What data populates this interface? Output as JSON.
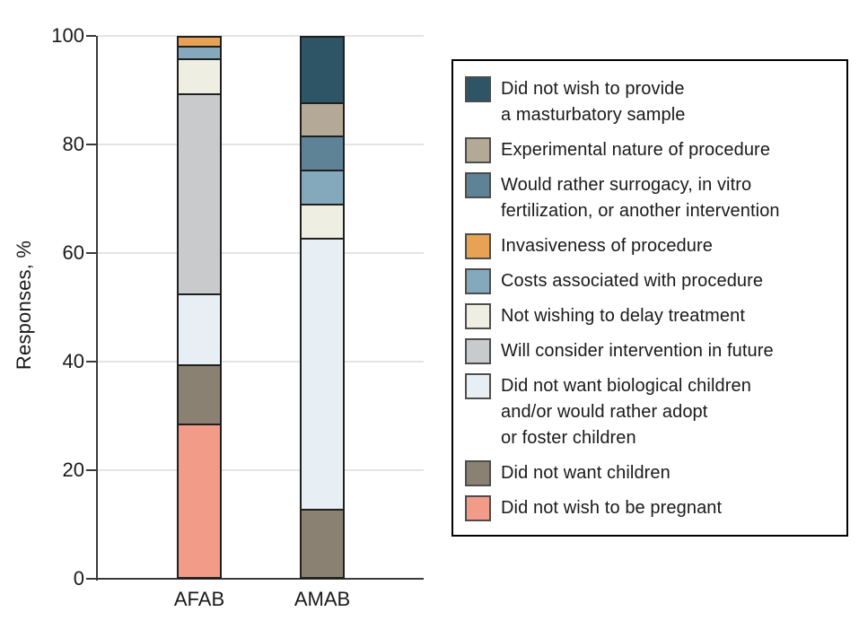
{
  "figure": {
    "background": "#ffffff",
    "axis_color": "#3a3a3a",
    "gridline_color": "#e4e4e4",
    "segment_border_color": "#1f1f1f"
  },
  "chart_data": {
    "type": "bar",
    "stacked": true,
    "title": "",
    "xlabel": "",
    "ylabel": "Responses, %",
    "ylim": [
      0,
      100
    ],
    "yticks": [
      0,
      20,
      40,
      60,
      80,
      100
    ],
    "grid": true,
    "categories": [
      "AFAB",
      "AMAB"
    ],
    "series": [
      {
        "name": "Did not wish to be pregnant",
        "color": "#F19B88",
        "values": [
          28.3,
          0
        ]
      },
      {
        "name": "Did not want children",
        "color": "#8B8173",
        "values": [
          10.9,
          12.5
        ]
      },
      {
        "name": "Did not want biological children and/or would rather adopt or foster children",
        "color": "#E7EFF4",
        "values": [
          13.0,
          50.0
        ]
      },
      {
        "name": "Will consider intervention in future",
        "color": "#C8CACC",
        "values": [
          37.0,
          0
        ]
      },
      {
        "name": "Not wishing to delay treatment",
        "color": "#EFEEE3",
        "values": [
          6.5,
          6.25
        ]
      },
      {
        "name": "Costs associated with procedure",
        "color": "#84A9BC",
        "values": [
          2.2,
          6.25
        ]
      },
      {
        "name": "Invasiveness of procedure",
        "color": "#E8A254",
        "values": [
          2.2,
          0
        ]
      },
      {
        "name": "Would rather surrogacy, in vitro fertilization, or another intervention",
        "color": "#5F8396",
        "values": [
          0,
          6.25
        ]
      },
      {
        "name": "Experimental nature of procedure",
        "color": "#B4A996",
        "values": [
          0,
          6.25
        ]
      },
      {
        "name": "Did not wish to provide a masturbatory sample",
        "color": "#2E5565",
        "values": [
          0,
          12.5
        ]
      }
    ],
    "legend": {
      "position": "right",
      "items": [
        {
          "label": "Did not wish to provide\na masturbatory sample",
          "color": "#2E5565"
        },
        {
          "label": "Experimental nature of procedure",
          "color": "#B4A996"
        },
        {
          "label": "Would rather surrogacy, in vitro\nfertilization, or another intervention",
          "color": "#5F8396"
        },
        {
          "label": "Invasiveness of procedure",
          "color": "#E8A254"
        },
        {
          "label": "Costs associated with procedure",
          "color": "#84A9BC"
        },
        {
          "label": "Not wishing to delay treatment",
          "color": "#EFEEE3"
        },
        {
          "label": "Will consider intervention in future",
          "color": "#C8CACC"
        },
        {
          "label": "Did not want biological children\nand/or would rather adopt\nor foster children",
          "color": "#E7EFF4"
        },
        {
          "label": "Did not want children",
          "color": "#8B8173"
        },
        {
          "label": "Did not wish to be pregnant",
          "color": "#F19B88"
        }
      ]
    }
  }
}
